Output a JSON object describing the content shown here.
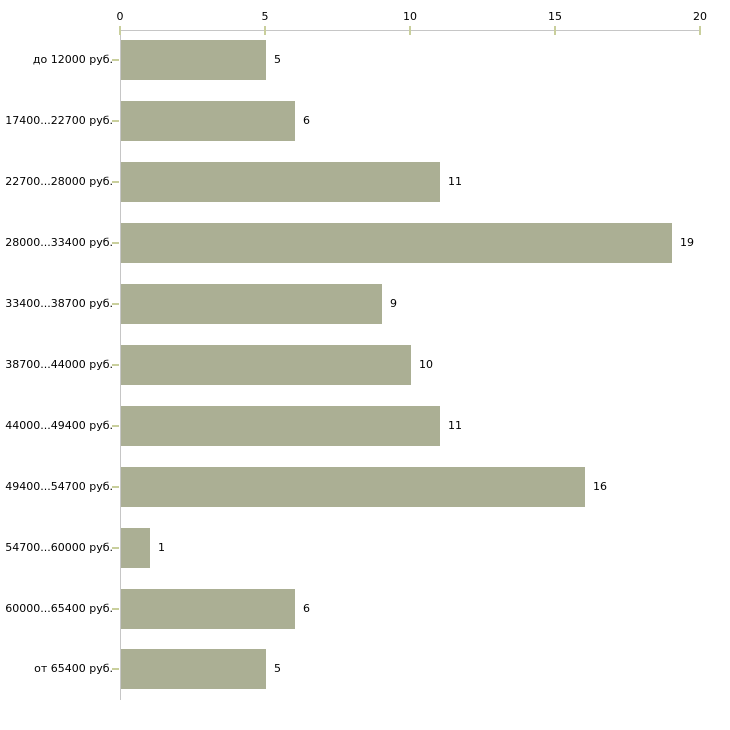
{
  "chart_data": {
    "type": "bar",
    "orientation": "horizontal",
    "title": "",
    "xlabel": "",
    "ylabel": "",
    "categories": [
      "до 12000 руб.",
      "17400...22700 руб.",
      "22700...28000 руб.",
      "28000...33400 руб.",
      "33400...38700 руб.",
      "38700...44000 руб.",
      "44000...49400 руб.",
      "49400...54700 руб.",
      "54700...60000 руб.",
      "60000...65400 руб.",
      "от 65400 руб."
    ],
    "values": [
      5,
      6,
      11,
      19,
      9,
      10,
      11,
      16,
      1,
      6,
      5
    ],
    "value_labels": [
      "5",
      "6",
      "11",
      "19",
      "9",
      "10",
      "11",
      "16",
      "1",
      "6",
      "5"
    ],
    "x_ticks": [
      "0",
      "5",
      "10",
      "15",
      "20"
    ],
    "x_tick_values": [
      0,
      5,
      10,
      15,
      20
    ],
    "xlim": [
      0,
      20
    ],
    "axis_position": "top",
    "grid": false,
    "legend": false,
    "colors": {
      "bar_fill": "#abaf94",
      "axis_line": "#c6c6c6",
      "tick_mark": "#c9cf9c",
      "text": "#000000",
      "background": "#ffffff"
    }
  }
}
